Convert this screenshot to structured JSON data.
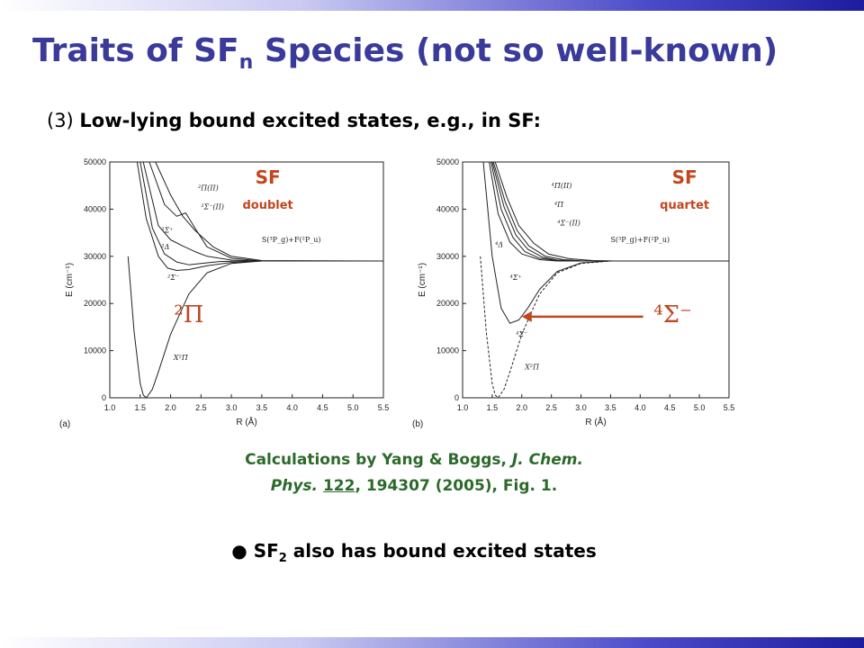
{
  "slide": {
    "title_main": "Traits of SF",
    "title_sub": "n",
    "title_rest": " Species (not so well-known)",
    "subhead_num": "(3) ",
    "subhead_text": "Low-lying bound excited states, e.g., in SF:",
    "citation_line1": "Calculations by Yang & Boggs, ",
    "citation_journal1": "J. Chem.",
    "citation_journal2": "Phys.",
    "citation_volume": "122",
    "citation_rest": ", 194307 (2005), Fig. 1.",
    "bullet_prefix": "● SF",
    "bullet_sub": "2",
    "bullet_rest": " also has bound excited states"
  },
  "colors": {
    "title": "#3a3a9a",
    "highlight_red": "#c0461d",
    "citation_green": "#2c6a2a"
  },
  "chart_data": [
    {
      "type": "line",
      "panel_label": "(a)",
      "title": "SF",
      "subtitle": "doublet",
      "xlabel": "R (Å)",
      "ylabel": "E (cm⁻¹)",
      "xlim": [
        1.0,
        5.5
      ],
      "ylim": [
        0,
        50000
      ],
      "x_ticks": [
        "1.0",
        "1.5",
        "2.0",
        "2.5",
        "3.0",
        "3.5",
        "4.0",
        "4.5",
        "5.0",
        "5.5"
      ],
      "y_ticks": [
        "0",
        "10000",
        "20000",
        "30000",
        "40000",
        "50000"
      ],
      "asymptote_label": "S(³P_g)+F(²P_u)",
      "big_label": "²Π",
      "series": [
        {
          "name": "X²Π",
          "x": [
            1.3,
            1.4,
            1.5,
            1.55,
            1.6,
            1.7,
            1.8,
            2.0,
            2.3,
            2.6,
            3.0,
            3.5,
            4.0,
            4.5,
            5.0,
            5.5
          ],
          "y": [
            30000,
            14000,
            3000,
            600,
            0,
            1800,
            5500,
            13500,
            22000,
            26500,
            28500,
            29000,
            29000,
            29000,
            29000,
            29000
          ]
        },
        {
          "name": "²Σ⁻",
          "x": [
            1.45,
            1.6,
            1.8,
            1.95,
            2.1,
            2.3,
            2.6,
            3.0,
            3.5,
            4.0,
            5.5
          ],
          "y": [
            50000,
            38000,
            30000,
            27500,
            27000,
            27200,
            28000,
            28700,
            29000,
            29000,
            29000
          ]
        },
        {
          "name": "²Δ",
          "x": [
            1.5,
            1.7,
            1.9,
            2.1,
            2.3,
            2.5,
            2.8,
            3.2,
            4.0,
            5.5
          ],
          "y": [
            50000,
            36000,
            30500,
            28800,
            28200,
            28500,
            28900,
            29000,
            29000,
            29000
          ]
        },
        {
          "name": "²Σ⁺",
          "x": [
            1.55,
            1.8,
            2.0,
            2.2,
            2.4,
            2.6,
            3.0,
            3.5,
            5.5
          ],
          "y": [
            50000,
            36500,
            33500,
            32200,
            31000,
            30000,
            29200,
            29000,
            29000
          ]
        },
        {
          "name": "²Π(II)",
          "x": [
            1.65,
            1.9,
            2.1,
            2.25,
            2.4,
            2.6,
            3.0,
            3.5,
            5.5
          ],
          "y": [
            50000,
            41000,
            38500,
            39200,
            36000,
            32000,
            29600,
            29000,
            29000
          ]
        },
        {
          "name": "²Σ⁻(II)",
          "x": [
            1.75,
            2.0,
            2.2,
            2.4,
            2.7,
            3.0,
            3.5,
            5.5
          ],
          "y": [
            50000,
            43000,
            38500,
            35500,
            32000,
            30000,
            29100,
            29000
          ]
        }
      ]
    },
    {
      "type": "line",
      "panel_label": "(b)",
      "title": "SF",
      "subtitle": "quartet",
      "xlabel": "R (Å)",
      "ylabel": "E (cm⁻¹)",
      "xlim": [
        1.0,
        5.5
      ],
      "ylim": [
        0,
        50000
      ],
      "x_ticks": [
        "1.0",
        "1.5",
        "2.0",
        "2.5",
        "3.0",
        "3.5",
        "4.0",
        "4.5",
        "5.0",
        "5.5"
      ],
      "y_ticks": [
        "0",
        "10000",
        "20000",
        "30000",
        "40000",
        "50000"
      ],
      "asymptote_label": "S(³P_g)+F(²P_u)",
      "big_label": "⁴Σ⁻",
      "series": [
        {
          "name": "⁴Σ⁻",
          "x": [
            1.35,
            1.5,
            1.65,
            1.8,
            1.95,
            2.1,
            2.3,
            2.6,
            3.0,
            3.5,
            4.0,
            5.5
          ],
          "y": [
            50000,
            30000,
            19000,
            15800,
            16500,
            19000,
            23000,
            26800,
            28600,
            29000,
            29000,
            29000
          ]
        },
        {
          "name": "X²Π",
          "dashed": true,
          "x": [
            1.3,
            1.4,
            1.5,
            1.55,
            1.6,
            1.7,
            1.8,
            2.0,
            2.3,
            2.6,
            3.0,
            3.5,
            4.0,
            5.5
          ],
          "y": [
            30000,
            14000,
            3000,
            600,
            0,
            1800,
            5500,
            13500,
            22000,
            26500,
            28500,
            29000,
            29000,
            29000
          ]
        },
        {
          "name": "⁴Σ⁺",
          "x": [
            1.45,
            1.6,
            1.8,
            2.0,
            2.3,
            2.6,
            3.0,
            3.5,
            5.5
          ],
          "y": [
            50000,
            39000,
            33000,
            30500,
            29300,
            29000,
            29000,
            29000,
            29000
          ]
        },
        {
          "name": "⁴Δ",
          "x": [
            1.48,
            1.65,
            1.85,
            2.05,
            2.3,
            2.6,
            3.0,
            3.5,
            5.5
          ],
          "y": [
            50000,
            40000,
            34000,
            31000,
            29600,
            29100,
            29000,
            29000,
            29000
          ]
        },
        {
          "name": "⁴Σ⁻(II)",
          "x": [
            1.5,
            1.7,
            1.9,
            2.1,
            2.35,
            2.6,
            3.0,
            3.5,
            5.5
          ],
          "y": [
            50000,
            40500,
            34500,
            31500,
            29800,
            29200,
            29000,
            29000,
            29000
          ]
        },
        {
          "name": "⁴Π",
          "x": [
            1.52,
            1.72,
            1.92,
            2.12,
            2.4,
            2.7,
            3.0,
            3.5,
            5.5
          ],
          "y": [
            50000,
            41500,
            35500,
            32200,
            30000,
            29300,
            29050,
            29000,
            29000
          ]
        },
        {
          "name": "⁴Π(II)",
          "x": [
            1.55,
            1.75,
            1.95,
            2.2,
            2.45,
            2.8,
            3.2,
            3.6,
            5.5
          ],
          "y": [
            50000,
            42500,
            36500,
            32800,
            30500,
            29500,
            29100,
            29000,
            29000
          ]
        }
      ]
    }
  ]
}
